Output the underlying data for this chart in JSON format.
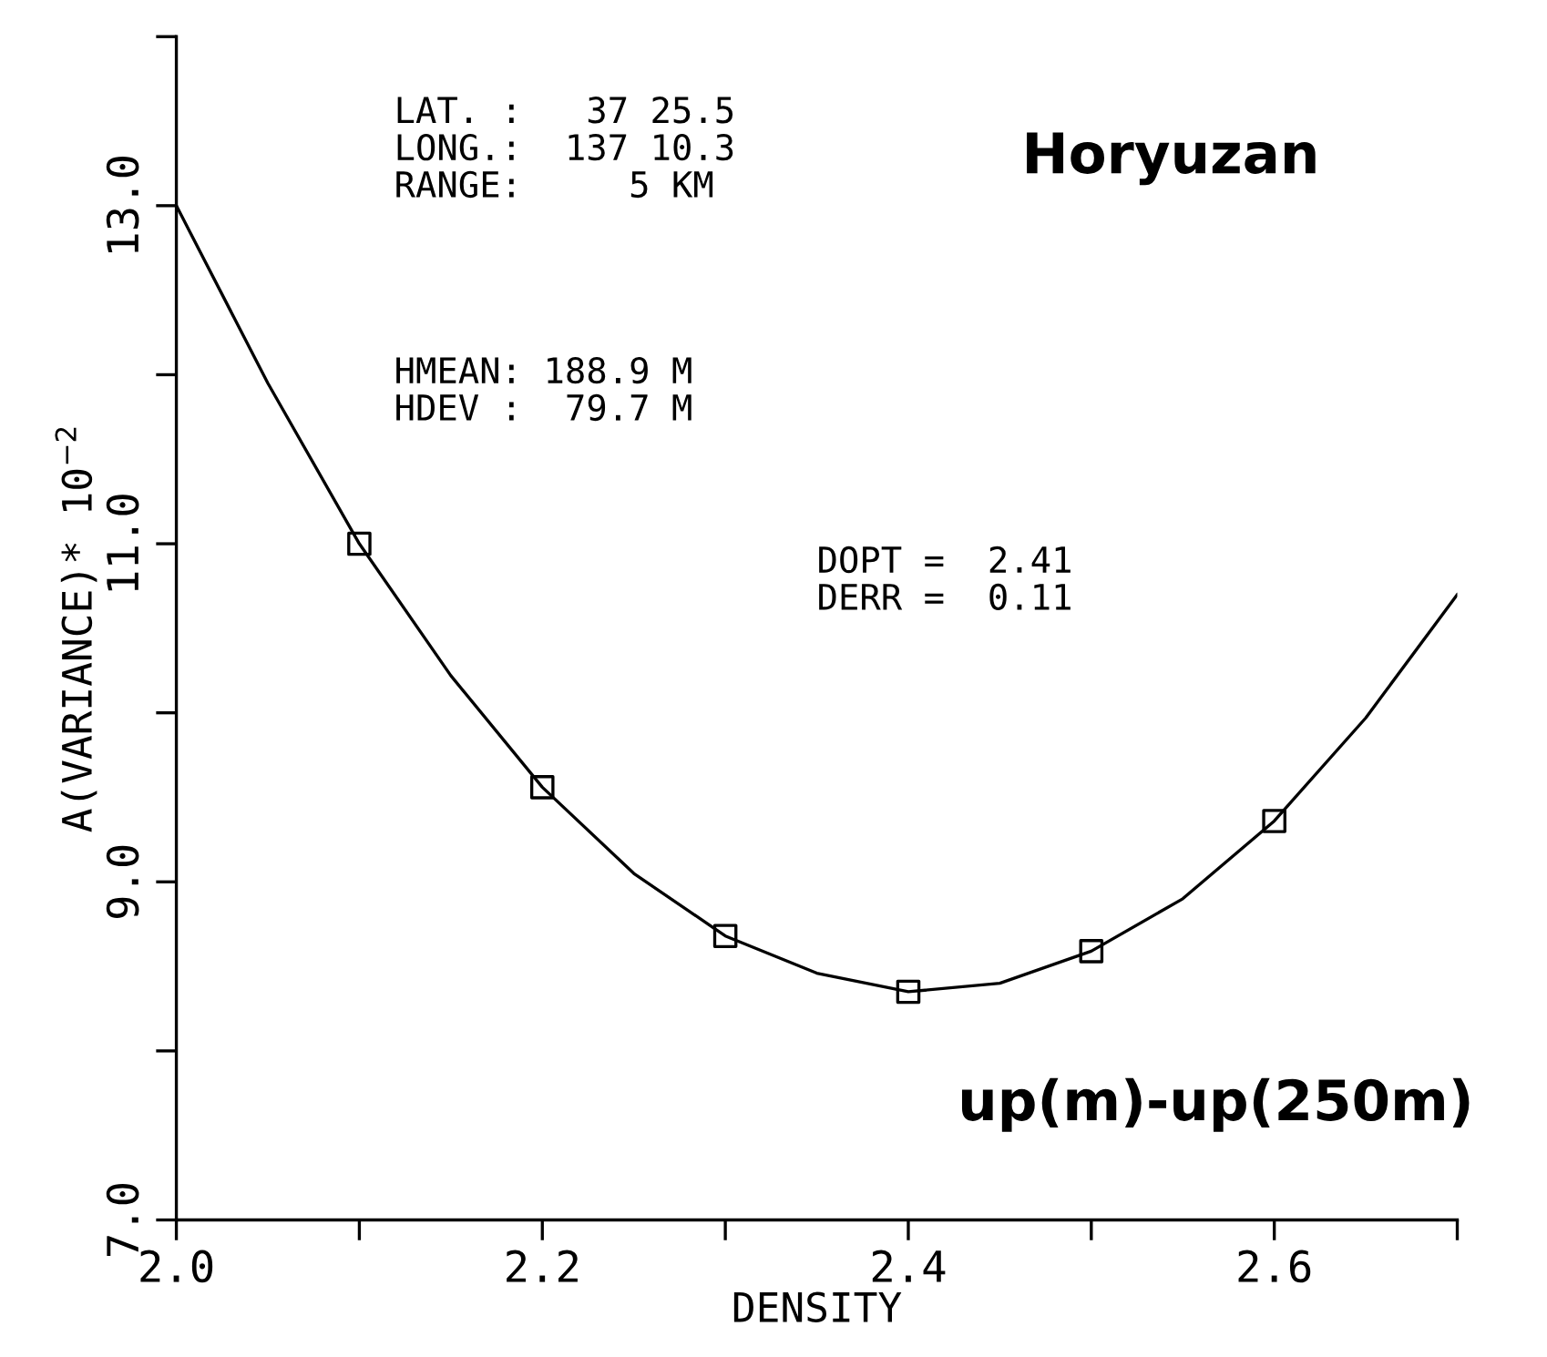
{
  "chart_data": {
    "type": "scatter",
    "xlabel": "DENSITY",
    "ylabel": "A(VARIANCE)* 10$^{−2}$",
    "series": [
      {
        "type": "line",
        "color": "#000000",
        "marker": "none",
        "x": [
          2.0,
          2.05,
          2.1,
          2.15,
          2.2,
          2.25,
          2.3,
          2.35,
          2.4,
          2.45,
          2.5,
          2.55,
          2.6,
          2.65,
          2.7
        ],
        "values": [
          13.0,
          11.95,
          11.0,
          10.22,
          9.56,
          9.05,
          8.68,
          8.46,
          8.35,
          8.4,
          8.59,
          8.9,
          9.36,
          9.97,
          10.7
        ]
      },
      {
        "color": "#000000",
        "marker": "square",
        "x": [
          2.1,
          2.2,
          2.3,
          2.4,
          2.5,
          2.6
        ],
        "values": [
          11.0,
          9.56,
          8.68,
          8.35,
          8.59,
          9.36
        ]
      }
    ],
    "xlim": [
      2.0,
      2.7
    ],
    "ylim": [
      7.0,
      14.0
    ],
    "xticks": [
      {
        "value": 2.0,
        "label": "2.0"
      },
      {
        "value": 2.1,
        "label": null
      },
      {
        "value": 2.2,
        "label": "2.2"
      },
      {
        "value": 2.3,
        "label": null
      },
      {
        "value": 2.4,
        "label": "2.4"
      },
      {
        "value": 2.5,
        "label": null
      },
      {
        "value": 2.6,
        "label": "2.6"
      },
      {
        "value": 2.7,
        "label": null
      }
    ],
    "yticks": [
      {
        "value": 7.0,
        "label": "7.0"
      },
      {
        "value": 8.0,
        "label": null
      },
      {
        "value": 9.0,
        "label": "9.0"
      },
      {
        "value": 10.0,
        "label": null
      },
      {
        "value": 11.0,
        "label": "11.0"
      },
      {
        "value": 12.0,
        "label": null
      },
      {
        "value": 13.0,
        "label": "13.0"
      },
      {
        "value": 14.0,
        "label": null
      }
    ],
    "annotations": [
      "LAT. :   37 25.5\nLONG.:  137 10.3\nRANGE:     5 KM",
      "HMEAN: 188.9 M\nHDEV :  79.7 M",
      "Horyuzan",
      "DOPT =  2.41\nDERR =  0.11",
      "up(m)-up(250m)"
    ],
    "grid": false,
    "legend": false
  }
}
